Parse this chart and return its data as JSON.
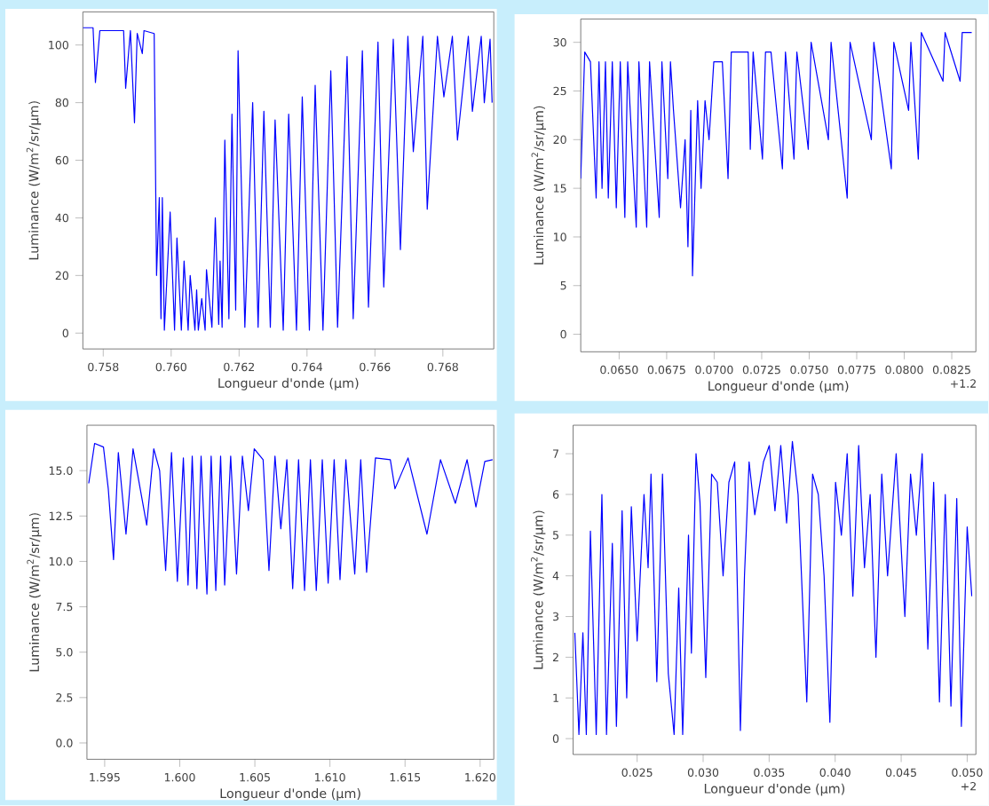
{
  "chart_data": [
    {
      "type": "line",
      "xlabel": "Longueur d'onde (µm)",
      "ylabel": "Luminance (W/m$^{2}$/sr/µm)",
      "color": "#0000ff",
      "x": [
        0.7574,
        0.7577,
        0.75777,
        0.7579,
        0.7586,
        0.75866,
        0.7588,
        0.75892,
        0.759,
        0.75915,
        0.7592,
        0.7595,
        0.75957,
        0.75965,
        0.7597,
        0.75974,
        0.7598,
        0.75997,
        0.7601,
        0.76017,
        0.7603,
        0.76038,
        0.7605,
        0.76056,
        0.7607,
        0.76075,
        0.7608,
        0.7609,
        0.761,
        0.76104,
        0.7612,
        0.7613,
        0.7614,
        0.76144,
        0.7615,
        0.76158,
        0.7617,
        0.76179,
        0.7619,
        0.76197,
        0.76217,
        0.7624,
        0.76256,
        0.76273,
        0.76292,
        0.76306,
        0.7633,
        0.76346,
        0.76369,
        0.76386,
        0.76407,
        0.76424,
        0.76447,
        0.7647,
        0.7649,
        0.76518,
        0.76536,
        0.76563,
        0.76581,
        0.76609,
        0.76626,
        0.76654,
        0.76675,
        0.76697,
        0.76713,
        0.76741,
        0.76754,
        0.76784,
        0.76803,
        0.76828,
        0.76843,
        0.76875,
        0.76887,
        0.76913,
        0.76922,
        0.76939,
        0.76945
      ],
      "values": [
        106,
        106,
        87,
        105,
        105,
        85,
        105,
        73,
        104,
        97,
        105,
        104,
        20,
        47,
        5,
        47,
        1,
        42,
        1,
        33,
        1,
        25,
        1,
        20,
        1,
        15,
        1,
        12,
        1,
        22,
        2,
        40,
        3,
        25,
        2,
        67,
        5,
        76,
        8,
        98,
        2,
        80,
        2,
        77,
        2,
        74,
        1,
        76,
        1,
        82,
        1,
        86,
        1,
        91,
        2,
        96,
        5,
        98,
        9,
        101,
        16,
        102,
        29,
        103,
        63,
        103,
        43,
        103,
        82,
        103,
        67,
        103,
        77,
        103,
        80,
        102,
        80
      ],
      "xlim": [
        0.7574,
        0.7695
      ],
      "ylim": [
        -5.5,
        111.5
      ],
      "xticks": [
        0.758,
        {
          "value": 0.76,
          "label": "0.760"
        },
        0.762,
        0.764,
        0.766,
        0.768
      ],
      "yticks": [
        0,
        20,
        40,
        60,
        80,
        100
      ]
    },
    {
      "type": "line",
      "xlabel": "Longueur d'onde (µm)",
      "ylabel": "Luminance (W/m$^{2}$/sr/µm)",
      "color": "#0000ff",
      "x": [
        0.06298,
        0.06319,
        0.06349,
        0.06379,
        0.06394,
        0.0641,
        0.06428,
        0.06443,
        0.06464,
        0.06485,
        0.06506,
        0.0653,
        0.06545,
        0.0659,
        0.06604,
        0.06645,
        0.0666,
        0.06711,
        0.06725,
        0.06756,
        0.0677,
        0.06786,
        0.06823,
        0.06847,
        0.06862,
        0.06877,
        0.06886,
        0.06898,
        0.06913,
        0.06931,
        0.06952,
        0.06973,
        0.06998,
        0.07043,
        0.07073,
        0.0709,
        0.07179,
        0.0719,
        0.07205,
        0.07254,
        0.0727,
        0.07299,
        0.07359,
        0.07375,
        0.0742,
        0.07435,
        0.07495,
        0.0751,
        0.07601,
        0.07615,
        0.077,
        0.07715,
        0.07827,
        0.0784,
        0.07932,
        0.07945,
        0.08023,
        0.08035,
        0.08074,
        0.0809,
        0.08204,
        0.08215,
        0.08294,
        0.08305,
        0.08355
      ],
      "values": [
        16,
        29,
        28,
        14,
        28,
        15,
        28,
        14,
        28,
        13,
        28,
        12,
        28,
        11,
        28,
        11,
        28,
        12,
        28,
        16,
        28,
        23,
        13,
        20,
        9,
        23,
        6,
        14,
        24,
        15,
        24,
        20,
        28,
        28,
        16,
        29,
        29,
        19,
        29,
        18,
        29,
        29,
        17,
        29,
        18,
        29,
        19,
        30,
        20,
        30,
        14,
        30,
        20,
        30,
        17,
        30,
        23,
        30,
        18,
        31,
        26,
        31,
        26,
        31,
        31
      ],
      "xlim": [
        0.06298,
        0.08377
      ],
      "ylim": [
        -1.8,
        32.4
      ],
      "xticks": [
        {
          "value": 0.065,
          "label": "0.0650"
        },
        {
          "value": 0.0675,
          "label": "0.0675"
        },
        {
          "value": 0.07,
          "label": "0.0700"
        },
        {
          "value": 0.0725,
          "label": "0.0725"
        },
        {
          "value": 0.075,
          "label": "0.0750"
        },
        {
          "value": 0.0775,
          "label": "0.0775"
        },
        {
          "value": 0.08,
          "label": "0.0800"
        },
        {
          "value": 0.0825,
          "label": "0.0825"
        }
      ],
      "yticks": [
        0,
        5,
        10,
        15,
        20,
        25,
        30
      ],
      "annotations": [
        "+1.2"
      ]
    },
    {
      "type": "line",
      "xlabel": "Longueur d'onde (µm)",
      "ylabel": "Luminance (W/m$^{2}$/sr/µm)",
      "color": "#0000ff",
      "x": [
        1.59394,
        1.59433,
        1.59492,
        1.59524,
        1.59559,
        1.59591,
        1.59642,
        1.59689,
        1.5978,
        1.59827,
        1.59866,
        1.59906,
        1.59945,
        1.59984,
        1.60024,
        1.60055,
        1.60083,
        1.60114,
        1.60142,
        1.60181,
        1.60209,
        1.6024,
        1.60272,
        1.60299,
        1.60339,
        1.60378,
        1.60417,
        1.60457,
        1.60496,
        1.60555,
        1.60594,
        1.60634,
        1.60673,
        1.60713,
        1.60752,
        1.60791,
        1.60831,
        1.6087,
        1.60909,
        1.60949,
        1.60988,
        1.61028,
        1.61067,
        1.61106,
        1.61165,
        1.61205,
        1.61244,
        1.61303,
        1.61402,
        1.61433,
        1.6152,
        1.61646,
        1.61736,
        1.61835,
        1.61913,
        1.61972,
        1.62031,
        1.62083
      ],
      "values": [
        14.3,
        16.5,
        16.3,
        14,
        10.1,
        16,
        11.5,
        16.2,
        12,
        16.2,
        15,
        9.5,
        16,
        8.9,
        15.7,
        8.7,
        15.8,
        8.5,
        15.8,
        8.2,
        15.8,
        8.4,
        15.8,
        8.7,
        15.8,
        9.3,
        15.8,
        12.8,
        16.2,
        15.6,
        9.5,
        15.8,
        11.8,
        15.6,
        8.5,
        15.6,
        8.4,
        15.6,
        8.4,
        15.6,
        8.8,
        15.6,
        9,
        15.6,
        9.3,
        15.6,
        9.4,
        15.7,
        15.6,
        14,
        15.7,
        11.5,
        15.6,
        13.2,
        15.6,
        13,
        15.5,
        15.6
      ],
      "xlim": [
        1.59382,
        1.62091
      ],
      "ylim": [
        -0.9,
        17.5
      ],
      "xticks": [
        1.595,
        {
          "value": 1.6,
          "label": "1.600"
        },
        1.605,
        {
          "value": 1.61,
          "label": "1.610"
        },
        1.615,
        {
          "value": 1.62,
          "label": "1.620"
        }
      ],
      "yticks": [
        {
          "value": 0,
          "label": "0.0"
        },
        2.5,
        {
          "value": 5,
          "label": "5.0"
        },
        7.5,
        {
          "value": 10,
          "label": "10.0"
        },
        12.5,
        {
          "value": 15,
          "label": "15.0"
        }
      ]
    },
    {
      "type": "line",
      "xlabel": "Longueur d'onde (µm)",
      "ylabel": "Luminance (W/m$^{2}$/sr/µm)",
      "color": "#0000ff",
      "x": [
        0.02028,
        0.02059,
        0.02089,
        0.02115,
        0.02146,
        0.0219,
        0.02233,
        0.02268,
        0.02312,
        0.02343,
        0.02386,
        0.02421,
        0.02456,
        0.025,
        0.02552,
        0.02583,
        0.02605,
        0.02649,
        0.02692,
        0.02736,
        0.0278,
        0.02815,
        0.02845,
        0.02889,
        0.02911,
        0.02946,
        0.02976,
        0.0302,
        0.03064,
        0.03107,
        0.03151,
        0.03195,
        0.03239,
        0.03282,
        0.03313,
        0.03348,
        0.03391,
        0.03457,
        0.03501,
        0.03544,
        0.03588,
        0.03632,
        0.03676,
        0.03719,
        0.03785,
        0.03829,
        0.03872,
        0.03916,
        0.0396,
        0.04003,
        0.04047,
        0.04091,
        0.04134,
        0.04178,
        0.04222,
        0.04265,
        0.04309,
        0.04353,
        0.04397,
        0.04462,
        0.04528,
        0.04571,
        0.04615,
        0.04659,
        0.04702,
        0.04746,
        0.0479,
        0.04834,
        0.04877,
        0.04921,
        0.04956,
        0.05,
        0.05035
      ],
      "values": [
        2.6,
        0.1,
        2.6,
        0.1,
        5.1,
        0.1,
        6,
        0.1,
        4.8,
        0.3,
        5.6,
        1,
        5.7,
        2.4,
        6,
        4.2,
        6.5,
        1.4,
        6.5,
        1.6,
        0.1,
        3.7,
        0.1,
        5,
        2.1,
        7,
        5.8,
        1.5,
        6.5,
        6.3,
        4,
        6.3,
        6.8,
        0.2,
        4,
        6.8,
        5.5,
        6.8,
        7.2,
        5.6,
        7.2,
        5.3,
        7.3,
        6,
        0.9,
        6.5,
        6,
        4,
        0.4,
        6.3,
        5,
        7,
        3.5,
        7.2,
        4.2,
        6,
        2,
        6.5,
        4,
        7,
        3,
        6.5,
        5,
        7,
        2.2,
        6.3,
        0.9,
        6,
        0.8,
        5.9,
        0.3,
        5.2,
        3.5
      ],
      "xlim": [
        0.02015,
        0.05066
      ],
      "ylim": [
        -0.39,
        7.7
      ],
      "xticks": [
        0.025,
        {
          "value": 0.03,
          "label": "0.030"
        },
        0.035,
        {
          "value": 0.04,
          "label": "0.040"
        },
        0.045,
        {
          "value": 0.05,
          "label": "0.050"
        }
      ],
      "yticks": [
        0,
        1,
        2,
        3,
        4,
        5,
        6,
        7
      ],
      "annotations": [
        "+2"
      ]
    }
  ]
}
